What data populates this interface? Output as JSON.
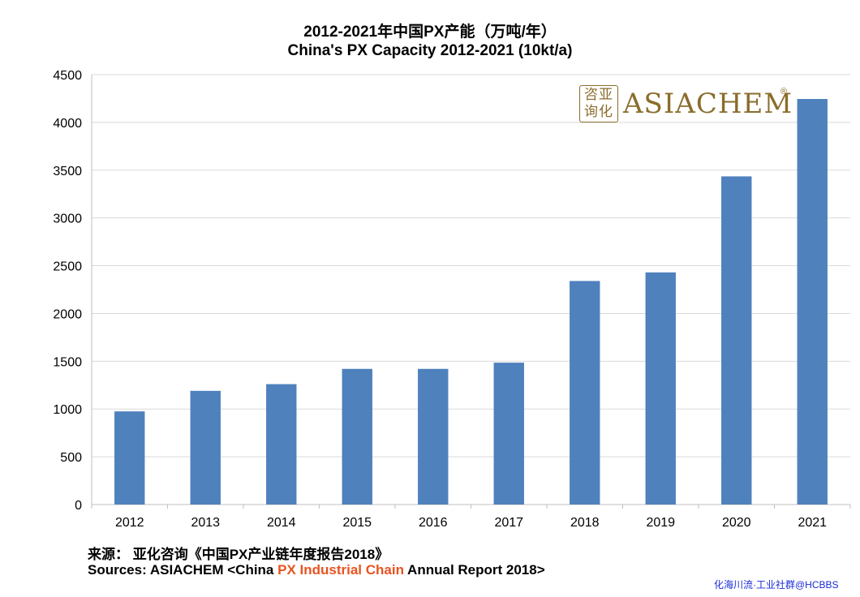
{
  "title_cn": "2012-2021年中国PX产能（万吨/年）",
  "title_en": "China's  PX Capacity 2012-2021 (10kt/a)",
  "source_cn": "来源：  亚化咨询《中国PX产业链年度报告2018》",
  "source_en": {
    "prefix": "Sources: ASIACHEM <China ",
    "highlight": "PX Industrial Chain",
    "suffix": " Annual Report 2018>"
  },
  "logo": {
    "seal_text": "咨亚询化",
    "brand": "ASIACHEM",
    "reg": "®"
  },
  "watermark": "化海川流·工业社群@HCBBS",
  "colors": {
    "bar": "#4f81bd",
    "grid": "#d9d9d9",
    "axis": "#bfbfbf",
    "highlight": "#e8531f",
    "logo": "#8a6d2c"
  },
  "chart_data": {
    "type": "bar",
    "categories": [
      "2012",
      "2013",
      "2014",
      "2015",
      "2016",
      "2017",
      "2018",
      "2019",
      "2020",
      "2021"
    ],
    "values": [
      975,
      1190,
      1260,
      1420,
      1420,
      1485,
      2340,
      2430,
      3435,
      4245
    ],
    "ylim": [
      0,
      4500
    ],
    "yticks": [
      0,
      500,
      1000,
      1500,
      2000,
      2500,
      3000,
      3500,
      4000,
      4500
    ],
    "grid": true,
    "legend": "none"
  }
}
